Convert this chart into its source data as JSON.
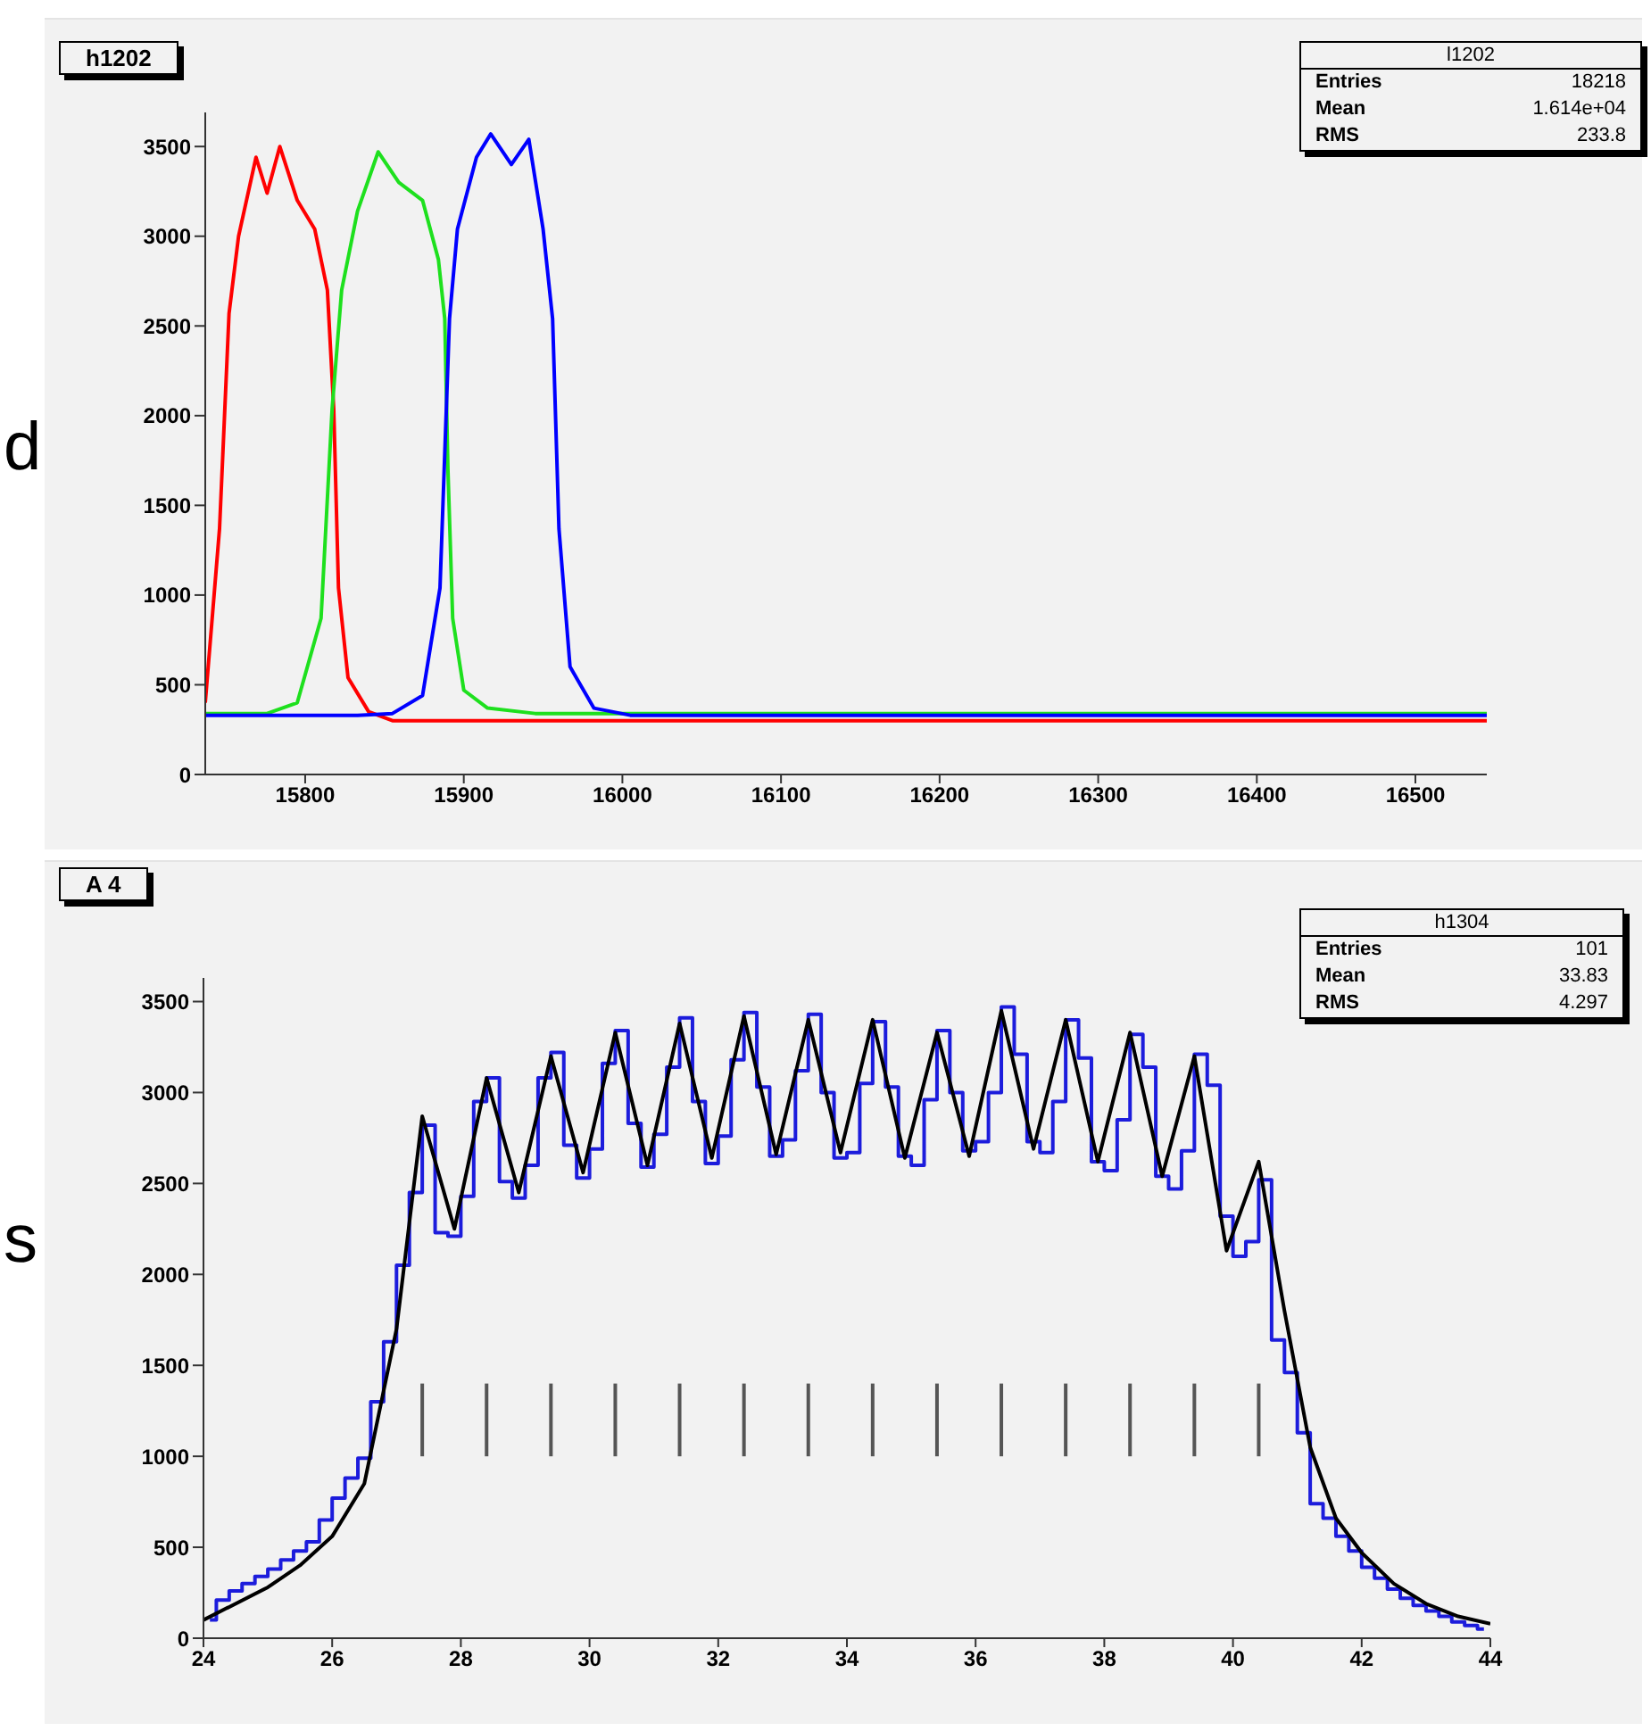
{
  "chart_data": [
    {
      "type": "line",
      "title": "h1202",
      "xlim": [
        15737,
        16545
      ],
      "xticks": [
        15800,
        15900,
        16000,
        16100,
        16200,
        16300,
        16400,
        16500
      ],
      "ylim": [
        0,
        3690
      ],
      "yticks": [
        0,
        500,
        1000,
        1500,
        2000,
        2500,
        3000,
        3500
      ],
      "series": [
        {
          "color": "#ff0000",
          "x": [
            15737,
            15746,
            15752,
            15758,
            15769,
            15776,
            15784,
            15795,
            15806,
            15814,
            15818,
            15821,
            15827,
            15840,
            15855,
            16545
          ],
          "values": [
            400,
            1370,
            2570,
            3000,
            3440,
            3240,
            3500,
            3200,
            3040,
            2700,
            2040,
            1040,
            540,
            350,
            300,
            300
          ]
        },
        {
          "color": "#1ee01e",
          "x": [
            15737,
            15776,
            15795,
            15810,
            15817,
            15823,
            15833,
            15846,
            15859,
            15874,
            15884,
            15888,
            15890,
            15893,
            15900,
            15915,
            15945,
            16545
          ],
          "values": [
            340,
            340,
            400,
            870,
            2040,
            2700,
            3140,
            3470,
            3300,
            3200,
            2870,
            2540,
            1700,
            870,
            470,
            370,
            340,
            340
          ]
        },
        {
          "color": "#0000ff",
          "x": [
            15737,
            15833,
            15855,
            15874,
            15885,
            15891,
            15896,
            15908,
            15917,
            15930,
            15941,
            15950,
            15956,
            15960,
            15967,
            15982,
            16005,
            16545
          ],
          "values": [
            330,
            330,
            340,
            440,
            1040,
            2540,
            3040,
            3440,
            3570,
            3400,
            3540,
            3040,
            2540,
            1370,
            600,
            370,
            330,
            330
          ]
        }
      ],
      "annotations": [
        "l1202",
        "Entries",
        "18218",
        "Mean",
        "1.614e+04",
        "RMS",
        "233.8",
        "d"
      ]
    },
    {
      "type": "step",
      "title": "A 4",
      "xlim": [
        24,
        44
      ],
      "xticks": [
        24,
        26,
        28,
        30,
        32,
        34,
        36,
        38,
        40,
        42,
        44
      ],
      "ylim": [
        0,
        3630
      ],
      "yticks": [
        0,
        500,
        1000,
        1500,
        2000,
        2500,
        3000,
        3500
      ],
      "color": "#1c1cdc",
      "x": [
        24.1,
        24.3,
        24.5,
        24.7,
        24.9,
        25.1,
        25.3,
        25.5,
        25.7,
        25.9,
        26.1,
        26.3,
        26.5,
        26.7,
        26.9,
        27.1,
        27.3,
        27.5,
        27.7,
        27.9,
        28.1,
        28.3,
        28.5,
        28.7,
        28.9,
        29.1,
        29.3,
        29.5,
        29.7,
        29.9,
        30.1,
        30.3,
        30.5,
        30.7,
        30.9,
        31.1,
        31.3,
        31.5,
        31.7,
        31.9,
        32.1,
        32.3,
        32.5,
        32.7,
        32.9,
        33.1,
        33.3,
        33.5,
        33.7,
        33.9,
        34.1,
        34.3,
        34.5,
        34.7,
        34.9,
        35.1,
        35.3,
        35.5,
        35.7,
        35.9,
        36.1,
        36.3,
        36.5,
        36.7,
        36.9,
        37.1,
        37.3,
        37.5,
        37.7,
        37.9,
        38.1,
        38.3,
        38.5,
        38.7,
        38.9,
        39.1,
        39.3,
        39.5,
        39.7,
        39.9,
        40.1,
        40.3,
        40.5,
        40.7,
        40.9,
        41.1,
        41.3,
        41.5,
        41.7,
        41.9,
        42.1,
        42.3,
        42.5,
        42.7,
        42.9,
        43.1,
        43.3,
        43.5,
        43.7,
        43.9
      ],
      "values": [
        100,
        210,
        260,
        300,
        340,
        380,
        430,
        480,
        530,
        650,
        770,
        880,
        990,
        1300,
        1630,
        2050,
        2450,
        2820,
        2230,
        2210,
        2430,
        2950,
        3080,
        2510,
        2420,
        2600,
        3080,
        3220,
        2710,
        2530,
        2690,
        3160,
        3340,
        2830,
        2590,
        2770,
        3140,
        3410,
        2950,
        2610,
        2760,
        3180,
        3440,
        3030,
        2650,
        2740,
        3120,
        3430,
        3000,
        2640,
        2670,
        3050,
        3390,
        3030,
        2650,
        2600,
        2960,
        3340,
        3000,
        2680,
        2730,
        3000,
        3470,
        3210,
        2730,
        2670,
        2950,
        3400,
        3190,
        2620,
        2570,
        2850,
        3320,
        3140,
        2540,
        2470,
        2680,
        3210,
        3040,
        2320,
        2100,
        2180,
        2520,
        1640,
        1460,
        1130,
        740,
        660,
        560,
        480,
        390,
        330,
        270,
        220,
        180,
        150,
        120,
        90,
        70,
        50
      ],
      "series": [
        {
          "type": "line",
          "color": "#000000",
          "x": [
            24,
            25,
            25.5,
            26,
            26.5,
            27,
            27.4,
            27.9,
            28.4,
            28.9,
            29.4,
            29.9,
            30.4,
            30.9,
            31.4,
            31.9,
            32.4,
            32.9,
            33.4,
            33.9,
            34.4,
            34.9,
            35.4,
            35.9,
            36.4,
            36.9,
            37.4,
            37.9,
            38.4,
            38.9,
            39.4,
            39.9,
            40.4,
            40.8,
            41.2,
            41.6,
            42,
            42.5,
            43,
            43.5,
            44
          ],
          "values": [
            100,
            280,
            400,
            560,
            850,
            1700,
            2870,
            2250,
            3080,
            2450,
            3200,
            2560,
            3330,
            2600,
            3380,
            2640,
            3420,
            2660,
            3400,
            2670,
            3400,
            2640,
            3330,
            2650,
            3450,
            2690,
            3400,
            2620,
            3330,
            2540,
            3200,
            2130,
            2620,
            1800,
            1050,
            660,
            470,
            300,
            190,
            120,
            80
          ]
        },
        {
          "type": "bar",
          "color": "#555555",
          "x": [
            27.4,
            28.4,
            29.4,
            30.4,
            31.4,
            32.4,
            33.4,
            34.4,
            35.4,
            36.4,
            37.4,
            38.4,
            39.4,
            40.4
          ],
          "base": [
            1000,
            1000,
            1000,
            1000,
            1000,
            1000,
            1000,
            1000,
            1000,
            1000,
            1000,
            1000,
            1000,
            1000
          ],
          "values": [
            400,
            400,
            400,
            400,
            400,
            400,
            400,
            400,
            400,
            400,
            400,
            400,
            400,
            400
          ]
        }
      ],
      "annotations": [
        "h1304",
        "Entries",
        "101",
        "Mean",
        "33.83",
        "RMS",
        "4.297",
        "s"
      ]
    }
  ]
}
